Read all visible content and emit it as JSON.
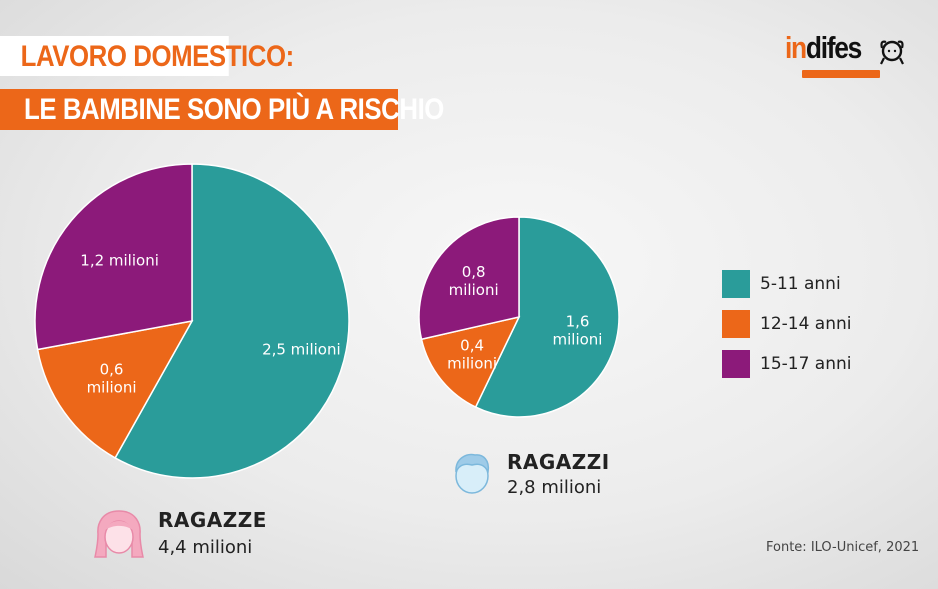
{
  "title": {
    "line1": "LAVORO DOMESTICO:",
    "line2": "LE BAMBINE SONO PIÙ A RISCHIO"
  },
  "logo": {
    "part1": "in",
    "part2": "difes",
    "icon": "girl-face-logo-icon"
  },
  "colors": {
    "accent": "#ec6719",
    "teal": "#2a9c9a",
    "orange": "#ec6719",
    "purple": "#8c1a7a"
  },
  "legend": [
    {
      "label": "5-11 anni",
      "color": "#2a9c9a"
    },
    {
      "label": "12-14 anni",
      "color": "#ec6719"
    },
    {
      "label": "15-17 anni",
      "color": "#8c1a7a"
    }
  ],
  "chart_data": [
    {
      "type": "pie",
      "title": "RAGAZZE",
      "total_label": "4,4 milioni",
      "total": 4.4,
      "categories": [
        "5-11 anni",
        "12-14 anni",
        "15-17 anni"
      ],
      "values": [
        2.5,
        0.6,
        1.2
      ],
      "value_labels": [
        "2,5 milioni",
        "0,6\nmilioni",
        "1,2 milioni"
      ],
      "icon": "girl-face-icon"
    },
    {
      "type": "pie",
      "title": "RAGAZZI",
      "total_label": "2,8 milioni",
      "total": 2.8,
      "categories": [
        "5-11 anni",
        "12-14 anni",
        "15-17 anni"
      ],
      "values": [
        1.6,
        0.4,
        0.8
      ],
      "value_labels": [
        "1,6\nmilioni",
        "0,4\nmilioni",
        "0,8\nmilioni"
      ],
      "icon": "boy-face-icon"
    }
  ],
  "source": "Fonte: ILO-Unicef, 2021"
}
